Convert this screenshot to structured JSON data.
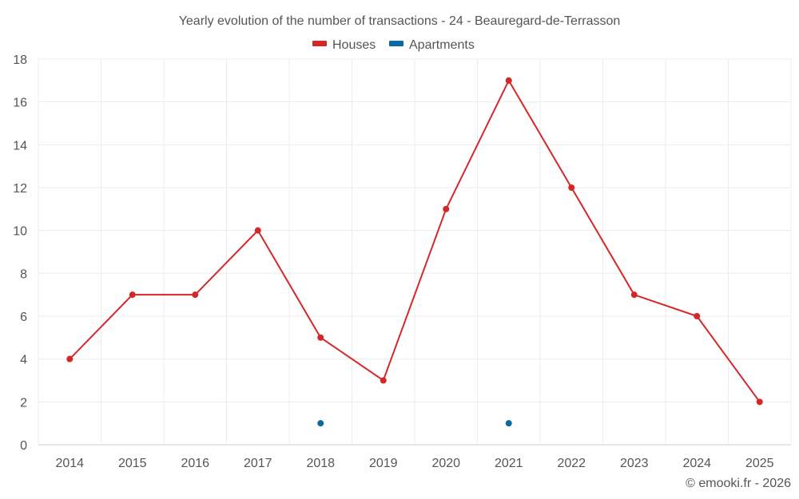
{
  "chart_data": {
    "type": "line",
    "title": "Yearly evolution of the number of transactions - 24 - Beauregard-de-Terrasson",
    "categories": [
      "2014",
      "2015",
      "2016",
      "2017",
      "2018",
      "2019",
      "2020",
      "2021",
      "2022",
      "2023",
      "2024",
      "2025"
    ],
    "series": [
      {
        "name": "Houses",
        "color": "#d62728",
        "values": [
          4,
          7,
          7,
          10,
          5,
          3,
          11,
          17,
          12,
          7,
          6,
          2
        ]
      },
      {
        "name": "Apartments",
        "color": "#0a6aa1",
        "values": [
          null,
          null,
          null,
          null,
          1,
          null,
          null,
          1,
          null,
          null,
          null,
          null
        ]
      }
    ],
    "ylim": [
      0,
      18
    ],
    "yticks": [
      "0",
      "2",
      "4",
      "6",
      "8",
      "10",
      "12",
      "14",
      "16",
      "18"
    ],
    "grid": true,
    "legend": "top-center"
  },
  "credit": "© emooki.fr - 2026"
}
